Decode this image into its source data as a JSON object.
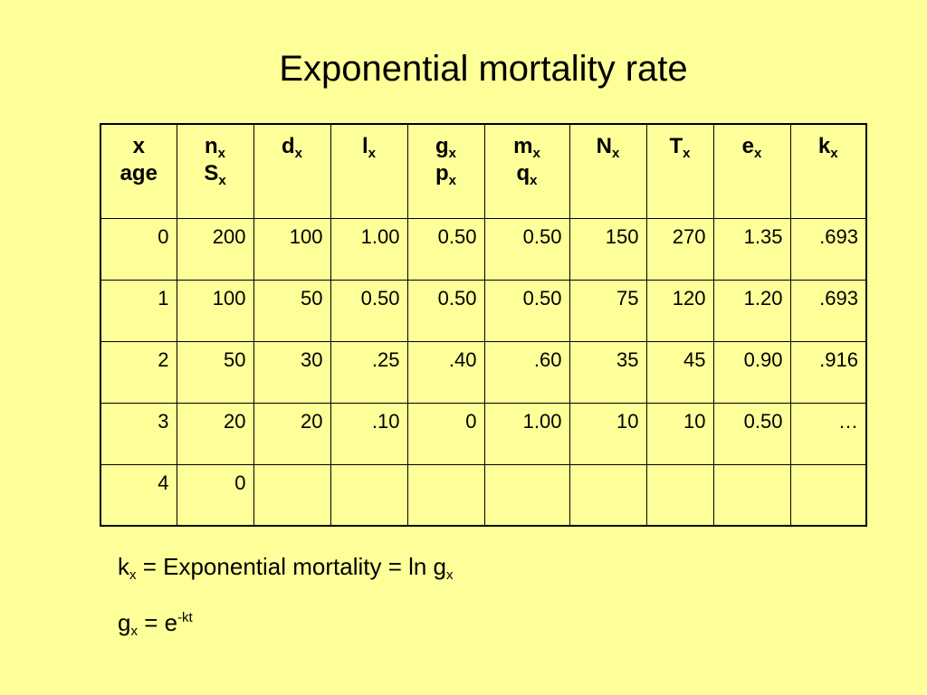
{
  "title": "Exponential mortality rate",
  "table": {
    "headers": [
      {
        "l1": "x",
        "l2": "age"
      },
      {
        "l1": "n",
        "s1": "x",
        "l2": "S",
        "s2": "x"
      },
      {
        "l1": "d",
        "s1": "x"
      },
      {
        "l1": "l",
        "s1": "x"
      },
      {
        "l1": "g",
        "s1": "x",
        "l2": "p",
        "s2": "x"
      },
      {
        "l1": "m",
        "s1": "x",
        "l2": "q",
        "s2": "x"
      },
      {
        "l1": "N",
        "s1": "x"
      },
      {
        "l1": "T",
        "s1": "x"
      },
      {
        "l1": "e",
        "s1": "x"
      },
      {
        "l1": "k",
        "s1": "x"
      }
    ],
    "rows": [
      [
        "0",
        "200",
        "100",
        "1.00",
        "0.50",
        "0.50",
        "150",
        "270",
        "1.35",
        ".693"
      ],
      [
        "1",
        "100",
        "50",
        "0.50",
        "0.50",
        "0.50",
        "75",
        "120",
        "1.20",
        ".693"
      ],
      [
        "2",
        "50",
        "30",
        ".25",
        ".40",
        ".60",
        "35",
        "45",
        "0.90",
        ".916"
      ],
      [
        "3",
        "20",
        "20",
        ".10",
        "0",
        "1.00",
        "10",
        "10",
        "0.50",
        "…"
      ],
      [
        "4",
        "0",
        "",
        "",
        "",
        "",
        "",
        "",
        "",
        ""
      ]
    ]
  },
  "formulas": {
    "f1": {
      "a": "k",
      "a_sub": "x",
      "b": " = Exponential mortality = ln g",
      "b_sub": "x"
    },
    "f2": {
      "a": "g",
      "a_sub": "x",
      "b": " = e",
      "b_sup": "-kt"
    }
  }
}
